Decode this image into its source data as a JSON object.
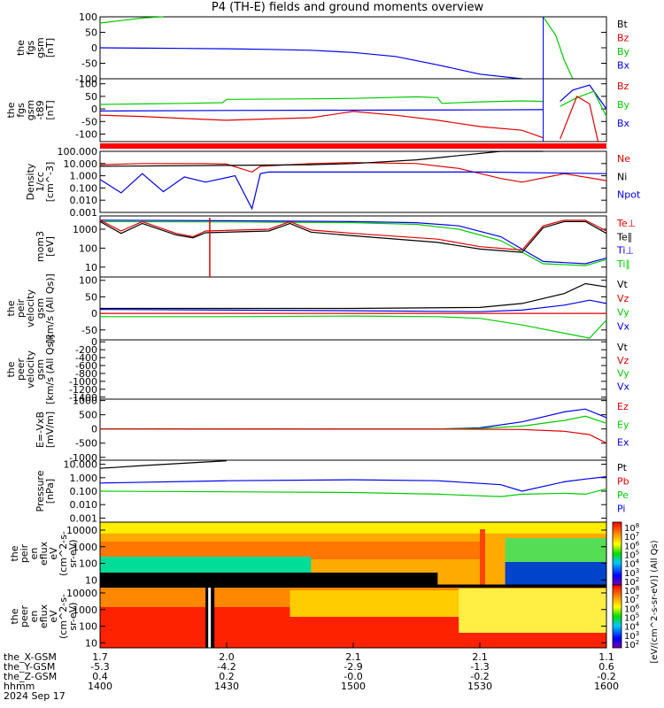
{
  "title": "P4 (TH-E) fields and ground moments overview",
  "date_label": "2024 Sep 17",
  "time_axis": {
    "row_labels": [
      "the_X-GSM",
      "the_Y-GSM",
      "the_Z-GSM",
      "hhmm"
    ],
    "columns": [
      {
        "x": "1.7",
        "y": "-5.3",
        "z": "0.4",
        "hhmm": "1400"
      },
      {
        "x": "2.0",
        "y": "-4.2",
        "z": "0.2",
        "hhmm": "1430"
      },
      {
        "x": "2.1",
        "y": "-2.9",
        "z": "-0.0",
        "hhmm": "1500"
      },
      {
        "x": "2.1",
        "y": "-1.3",
        "z": "-0.2",
        "hhmm": "1530"
      },
      {
        "x": "1.1",
        "y": "0.6",
        "z": "-0.2",
        "hhmm": "1600"
      }
    ]
  },
  "colorbars": [
    {
      "ticks": [
        "10^8",
        "10^7",
        "10^6",
        "10^5",
        "10^4",
        "10^3",
        "10^2"
      ]
    },
    {
      "ticks": [
        "10^8",
        "10^7",
        "10^6",
        "10^5",
        "10^4",
        "10^3",
        "10^2"
      ]
    }
  ],
  "colorbar_label": "[eV/(cm^2-s-sr-eV)] (All Qs)",
  "colors": {
    "black": "#000000",
    "red": "#e00000",
    "green": "#00cc00",
    "blue": "#0000ee"
  },
  "chart_data": [
    {
      "type": "line",
      "ylabel": [
        "the",
        "fgs",
        "gsm",
        "[nT]"
      ],
      "ylim": [
        -100,
        100
      ],
      "yticks": [
        "100",
        "50",
        "0",
        "-50",
        "-100"
      ],
      "legend": [
        {
          "name": "Bt",
          "color": "black"
        },
        {
          "name": "Bz",
          "color": "red"
        },
        {
          "name": "By",
          "color": "green"
        },
        {
          "name": "Bx",
          "color": "blue"
        }
      ],
      "series": [
        {
          "name": "Bx",
          "color": "blue",
          "x": [
            1400,
            1410,
            1420,
            1430,
            1440,
            1450,
            1500,
            1510,
            1520,
            1530,
            1540
          ],
          "y": [
            0,
            -1,
            -2,
            -3,
            -5,
            -8,
            -15,
            -28,
            -55,
            -85,
            -100
          ]
        },
        {
          "name": "By",
          "color": "green",
          "x": [
            1400,
            1405,
            1410,
            1415
          ],
          "y": [
            80,
            88,
            96,
            100
          ]
        },
        {
          "name": "By",
          "color": "green",
          "x": [
            1545,
            1548,
            1550,
            1552
          ],
          "y": [
            100,
            40,
            -40,
            -100
          ]
        }
      ]
    },
    {
      "type": "line",
      "ylabel": [
        "the",
        "fgs",
        "gsm",
        "-t89",
        "[nT]"
      ],
      "ylim": [
        -130,
        120
      ],
      "yticks": [
        "100",
        "50",
        "0",
        "-50",
        "-100"
      ],
      "legend": [
        {
          "name": "Bz",
          "color": "red"
        },
        {
          "name": "By",
          "color": "green"
        },
        {
          "name": "Bx",
          "color": "blue"
        }
      ],
      "series": [
        {
          "name": "By",
          "color": "green",
          "x": [
            1400,
            1410,
            1420,
            1429,
            1430,
            1450,
            1500,
            1515,
            1520,
            1521,
            1530,
            1540,
            1545
          ],
          "y": [
            18,
            20,
            22,
            25,
            38,
            40,
            42,
            48,
            45,
            22,
            28,
            32,
            30
          ]
        },
        {
          "name": "Bx",
          "color": "blue",
          "x": [
            1400,
            1430,
            1500,
            1530,
            1545
          ],
          "y": [
            -8,
            -6,
            -5,
            -4,
            -3
          ]
        },
        {
          "name": "Bz",
          "color": "red",
          "x": [
            1400,
            1410,
            1420,
            1430,
            1440,
            1450,
            1500,
            1510,
            1520,
            1530,
            1540,
            1545
          ],
          "y": [
            -25,
            -30,
            -38,
            -45,
            -40,
            -35,
            -10,
            -25,
            -45,
            -70,
            -85,
            -115
          ]
        },
        {
          "name": "Bx",
          "color": "blue",
          "x": [
            1549,
            1552,
            1556,
            1560
          ],
          "y": [
            30,
            75,
            95,
            0
          ]
        },
        {
          "name": "By",
          "color": "green",
          "x": [
            1549,
            1553,
            1557,
            1560
          ],
          "y": [
            10,
            45,
            70,
            -30
          ]
        },
        {
          "name": "Bz",
          "color": "red",
          "x": [
            1549,
            1553,
            1556,
            1558
          ],
          "y": [
            -120,
            50,
            20,
            -130
          ]
        }
      ]
    },
    {
      "type": "line",
      "scale": "log",
      "ylabel": [
        "Density",
        "1/cc",
        "[cm^-3]"
      ],
      "ylim": [
        0.001,
        100
      ],
      "yticks": [
        "100.000",
        "10.000",
        "1.000",
        "0.100",
        "0.010",
        "0.001"
      ],
      "legend": [
        {
          "name": "Ne",
          "color": "red"
        },
        {
          "name": "Ni",
          "color": "black"
        },
        {
          "name": "Npot",
          "color": "blue"
        }
      ],
      "series": [
        {
          "name": "Ne",
          "color": "red",
          "x": [
            1400,
            1410,
            1425,
            1430,
            1436,
            1438,
            1450,
            1500,
            1515,
            1525,
            1535,
            1540,
            1550,
            1560
          ],
          "y": [
            8,
            10,
            10,
            9,
            2,
            6,
            10,
            12,
            10,
            4,
            0.6,
            0.3,
            1.5,
            0.4
          ]
        },
        {
          "name": "Ni",
          "color": "black",
          "x": [
            1400,
            1430,
            1450,
            1500,
            1515,
            1525,
            1535,
            1545
          ],
          "y": [
            6,
            7,
            8,
            10,
            20,
            45,
            100,
            100
          ]
        },
        {
          "name": "Npot",
          "color": "blue",
          "x": [
            1400,
            1405,
            1410,
            1415,
            1420,
            1425,
            1432,
            1436,
            1438,
            1440,
            1500,
            1530,
            1560
          ],
          "y": [
            0.5,
            0.04,
            1.5,
            0.05,
            0.8,
            0.3,
            1.0,
            0.002,
            1.5,
            2,
            2,
            2,
            1.5
          ]
        }
      ]
    },
    {
      "type": "line",
      "scale": "log",
      "ylabel": [
        "mom3",
        "[eV]"
      ],
      "ylim": [
        3,
        5000
      ],
      "yticks": [
        "1000",
        "100",
        "10"
      ],
      "legend": [
        {
          "name": "Te⊥",
          "color": "red"
        },
        {
          "name": "Te∥",
          "color": "black"
        },
        {
          "name": "Ti⊥",
          "color": "blue"
        },
        {
          "name": "Ti∥",
          "color": "green"
        }
      ],
      "series": [
        {
          "name": "Ti⊥",
          "color": "blue",
          "x": [
            1400,
            1430,
            1500,
            1515,
            1525,
            1535,
            1545,
            1555,
            1560
          ],
          "y": [
            3000,
            2800,
            2500,
            2200,
            1500,
            400,
            20,
            15,
            30
          ]
        },
        {
          "name": "Ti∥",
          "color": "green",
          "x": [
            1400,
            1430,
            1500,
            1515,
            1525,
            1535,
            1545,
            1555,
            1560
          ],
          "y": [
            2500,
            2400,
            2200,
            1800,
            1000,
            250,
            15,
            12,
            25
          ]
        },
        {
          "name": "Te⊥",
          "color": "red",
          "x": [
            1400,
            1405,
            1410,
            1418,
            1422,
            1425,
            1440,
            1445,
            1450,
            1500,
            1520,
            1530,
            1540,
            1545,
            1550,
            1555,
            1560
          ],
          "y": [
            3000,
            800,
            2500,
            600,
            400,
            800,
            1000,
            2500,
            900,
            600,
            300,
            120,
            80,
            1500,
            3000,
            3000,
            800
          ]
        },
        {
          "name": "Te∥",
          "color": "black",
          "x": [
            1400,
            1405,
            1410,
            1418,
            1422,
            1425,
            1440,
            1445,
            1450,
            1500,
            1520,
            1530,
            1540,
            1545,
            1550,
            1555,
            1560
          ],
          "y": [
            2500,
            600,
            2000,
            500,
            350,
            650,
            800,
            2000,
            700,
            450,
            200,
            90,
            60,
            1200,
            2500,
            2500,
            600
          ]
        }
      ]
    },
    {
      "type": "line",
      "ylabel": [
        "the",
        "peir",
        "velocity",
        "gsm",
        "[km/s (All Qs)]"
      ],
      "ylim": [
        -80,
        110
      ],
      "yticks": [
        "100",
        "50",
        "0",
        "-50"
      ],
      "legend": [
        {
          "name": "Vt",
          "color": "black"
        },
        {
          "name": "Vz",
          "color": "red"
        },
        {
          "name": "Vy",
          "color": "green"
        },
        {
          "name": "Vx",
          "color": "blue"
        }
      ],
      "series": [
        {
          "name": "Vt",
          "color": "black",
          "x": [
            1400,
            1430,
            1500,
            1530,
            1540,
            1550,
            1555,
            1560
          ],
          "y": [
            15,
            15,
            15,
            18,
            30,
            60,
            90,
            80
          ]
        },
        {
          "name": "Vx",
          "color": "blue",
          "x": [
            1400,
            1430,
            1500,
            1530,
            1540,
            1550,
            1556,
            1560
          ],
          "y": [
            12,
            10,
            8,
            5,
            10,
            25,
            40,
            30
          ]
        },
        {
          "name": "Vz",
          "color": "red",
          "x": [
            1400,
            1530,
            1560
          ],
          "y": [
            0,
            0,
            0
          ]
        },
        {
          "name": "Vy",
          "color": "green",
          "x": [
            1400,
            1430,
            1500,
            1520,
            1530,
            1540,
            1550,
            1556,
            1560
          ],
          "y": [
            -10,
            -10,
            -8,
            -10,
            -15,
            -35,
            -60,
            -75,
            -20
          ]
        }
      ]
    },
    {
      "type": "line",
      "ylabel": [
        "the",
        "peer",
        "velocity",
        "gsm",
        "[km/s (All Qs)]"
      ],
      "ylim": [
        -1450,
        50
      ],
      "yticks": [
        "0",
        "-200",
        "-400",
        "-600",
        "-800",
        "-1000",
        "-1200",
        "-1400"
      ],
      "legend": [
        {
          "name": "Vt",
          "color": "black"
        },
        {
          "name": "Vz",
          "color": "red"
        },
        {
          "name": "Vy",
          "color": "green"
        },
        {
          "name": "Vx",
          "color": "blue"
        }
      ],
      "series": []
    },
    {
      "type": "line",
      "ylabel": [
        "E=-VxB",
        "[mV/m]"
      ],
      "ylim": [
        -1100,
        1050
      ],
      "yticks": [
        "1000",
        "500",
        "0",
        "-500",
        "-1000"
      ],
      "legend": [
        {
          "name": "Ez",
          "color": "red"
        },
        {
          "name": "Ey",
          "color": "green"
        },
        {
          "name": "Ex",
          "color": "blue"
        }
      ],
      "series": [
        {
          "name": "Ex",
          "color": "blue",
          "x": [
            1400,
            1520,
            1530,
            1540,
            1550,
            1555,
            1560
          ],
          "y": [
            0,
            0,
            40,
            250,
            600,
            700,
            400
          ]
        },
        {
          "name": "Ey",
          "color": "green",
          "x": [
            1400,
            1520,
            1530,
            1540,
            1550,
            1555,
            1560
          ],
          "y": [
            0,
            0,
            20,
            100,
            300,
            450,
            200
          ]
        },
        {
          "name": "Ez",
          "color": "red",
          "x": [
            1400,
            1520,
            1540,
            1550,
            1556,
            1560
          ],
          "y": [
            0,
            -5,
            -20,
            -80,
            -200,
            -500
          ]
        }
      ]
    },
    {
      "type": "line",
      "scale": "log",
      "ylabel": [
        "Pressure",
        "[nPa]"
      ],
      "ylim": [
        0.0005,
        20
      ],
      "yticks": [
        "10.000",
        "1.000",
        "0.100",
        "0.010",
        "0.001"
      ],
      "legend": [
        {
          "name": "Pt",
          "color": "black"
        },
        {
          "name": "Pb",
          "color": "red"
        },
        {
          "name": "Pe",
          "color": "green"
        },
        {
          "name": "Pi",
          "color": "blue"
        }
      ],
      "series": [
        {
          "name": "Pt",
          "color": "black",
          "x": [
            1400,
            1410,
            1420,
            1430
          ],
          "y": [
            5,
            8,
            12,
            18
          ]
        },
        {
          "name": "Pi",
          "color": "blue",
          "x": [
            1400,
            1430,
            1500,
            1520,
            1535,
            1540,
            1550,
            1555,
            1560
          ],
          "y": [
            0.4,
            0.6,
            0.7,
            0.6,
            0.3,
            0.1,
            0.5,
            0.8,
            1.2
          ]
        },
        {
          "name": "Pe",
          "color": "green",
          "x": [
            1400,
            1430,
            1500,
            1520,
            1535,
            1540,
            1550,
            1555,
            1560
          ],
          "y": [
            0.1,
            0.09,
            0.08,
            0.06,
            0.04,
            0.06,
            0.07,
            0.06,
            0.15
          ]
        }
      ]
    },
    {
      "type": "heatmap",
      "ylabel": [
        "the",
        "peir",
        "en",
        "eflux",
        "eV",
        "(cm^2-s-",
        "sr-eV)"
      ],
      "scale": "log",
      "ylim": [
        5,
        30000
      ],
      "yticks": [
        "10000",
        "1000",
        "100",
        "10"
      ]
    },
    {
      "type": "heatmap",
      "ylabel": [
        "the",
        "peer",
        "en",
        "eflux",
        "eV",
        "(cm^2-s-",
        "sr-eV)"
      ],
      "scale": "log",
      "ylim": [
        5,
        30000
      ],
      "yticks": [
        "10000",
        "1000",
        "100",
        "10"
      ]
    }
  ]
}
